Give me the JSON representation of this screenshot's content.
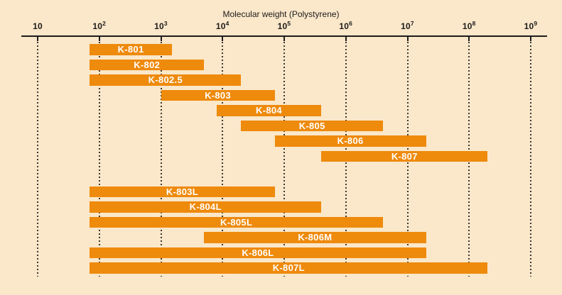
{
  "chart_data": {
    "type": "bar",
    "subtype": "horizontal-log-range-bars",
    "title": "Molecular weight (Polystyrene)",
    "x_axis": {
      "scale": "log",
      "base": 10,
      "range": [
        10,
        1000000000
      ],
      "tick_exponents": [
        1,
        2,
        3,
        4,
        5,
        6,
        7,
        8,
        9
      ],
      "tick_labels": [
        "10",
        "10²",
        "10³",
        "10⁴",
        "10⁵",
        "10⁶",
        "10⁷",
        "10⁸",
        "10⁹"
      ],
      "gridlines": "dotted-vertical"
    },
    "legend_position": "none",
    "series": [
      {
        "label": "K-801",
        "group": "standard",
        "mw_min": 70,
        "mw_max": 1500
      },
      {
        "label": "K-802",
        "group": "standard",
        "mw_min": 70,
        "mw_max": 5000
      },
      {
        "label": "K-802.5",
        "group": "standard",
        "mw_min": 70,
        "mw_max": 20000
      },
      {
        "label": "K-803",
        "group": "standard",
        "mw_min": 1000,
        "mw_max": 70000
      },
      {
        "label": "K-804",
        "group": "standard",
        "mw_min": 8000,
        "mw_max": 400000
      },
      {
        "label": "K-805",
        "group": "standard",
        "mw_min": 20000,
        "mw_max": 4000000
      },
      {
        "label": "K-806",
        "group": "standard",
        "mw_min": 70000,
        "mw_max": 20000000
      },
      {
        "label": "K-807",
        "group": "standard",
        "mw_min": 400000,
        "mw_max": 200000000
      },
      {
        "label": "K-803L",
        "group": "linear",
        "mw_min": 70,
        "mw_max": 70000
      },
      {
        "label": "K-804L",
        "group": "linear",
        "mw_min": 70,
        "mw_max": 400000
      },
      {
        "label": "K-805L",
        "group": "linear",
        "mw_min": 70,
        "mw_max": 4000000
      },
      {
        "label": "K-806M",
        "group": "linear",
        "mw_min": 5000,
        "mw_max": 20000000
      },
      {
        "label": "K-806L",
        "group": "linear",
        "mw_min": 70,
        "mw_max": 20000000
      },
      {
        "label": "K-807L",
        "group": "linear",
        "mw_min": 70,
        "mw_max": 200000000
      }
    ],
    "colors": {
      "bar": "#EE8A0C",
      "background": "#FBE7C9",
      "bar_label": "#FFFFFF",
      "axis": "#1C1C1C"
    }
  }
}
